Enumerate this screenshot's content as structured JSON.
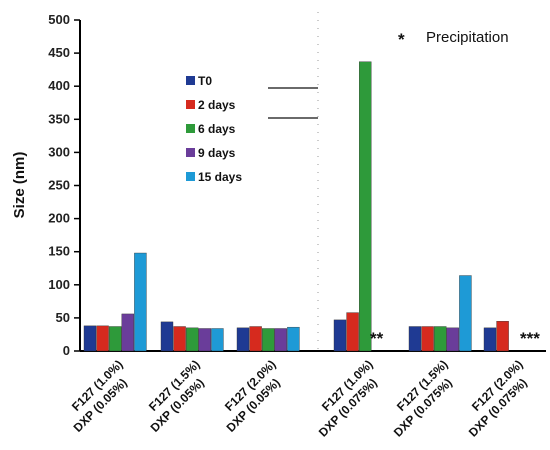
{
  "chart_data": {
    "type": "bar",
    "ylabel": "Size (nm)",
    "ylim": [
      0,
      500
    ],
    "yticks": [
      0,
      50,
      100,
      150,
      200,
      250,
      300,
      350,
      400,
      450,
      500
    ],
    "categories": [
      [
        "F127 (1.0%)",
        "DXP (0.05%)"
      ],
      [
        "F127 (1.5%)",
        "DXP (0.05%)"
      ],
      [
        "F127 (2.0%)",
        "DXP (0.05%)"
      ],
      [
        "F127 (1.0%)",
        "DXP (0.075%)"
      ],
      [
        "F127 (1.5%)",
        "DXP (0.075%)"
      ],
      [
        "F127 (2.0%)",
        "DXP (0.075%)"
      ]
    ],
    "series": [
      {
        "name": "T0",
        "color": "#1f3a93",
        "values": [
          38,
          44,
          35,
          47,
          37,
          35
        ]
      },
      {
        "name": "2 days",
        "color": "#d62a1e",
        "values": [
          38,
          37,
          37,
          58,
          37,
          45
        ]
      },
      {
        "name": "6 days",
        "color": "#2e9a3a",
        "values": [
          37,
          35,
          34,
          437,
          37,
          null
        ]
      },
      {
        "name": "9 days",
        "color": "#6a3d9a",
        "values": [
          56,
          34,
          34,
          null,
          35,
          null
        ]
      },
      {
        "name": "15 days",
        "color": "#1e9ad6",
        "values": [
          148,
          34,
          36,
          null,
          114,
          null
        ]
      }
    ],
    "annotations": [
      {
        "text": "**",
        "group": 3
      },
      {
        "text": "***",
        "group": 5
      }
    ],
    "note": {
      "symbol": "*",
      "text": "Precipitation"
    },
    "legend_position": "upper-left",
    "grid": false
  }
}
